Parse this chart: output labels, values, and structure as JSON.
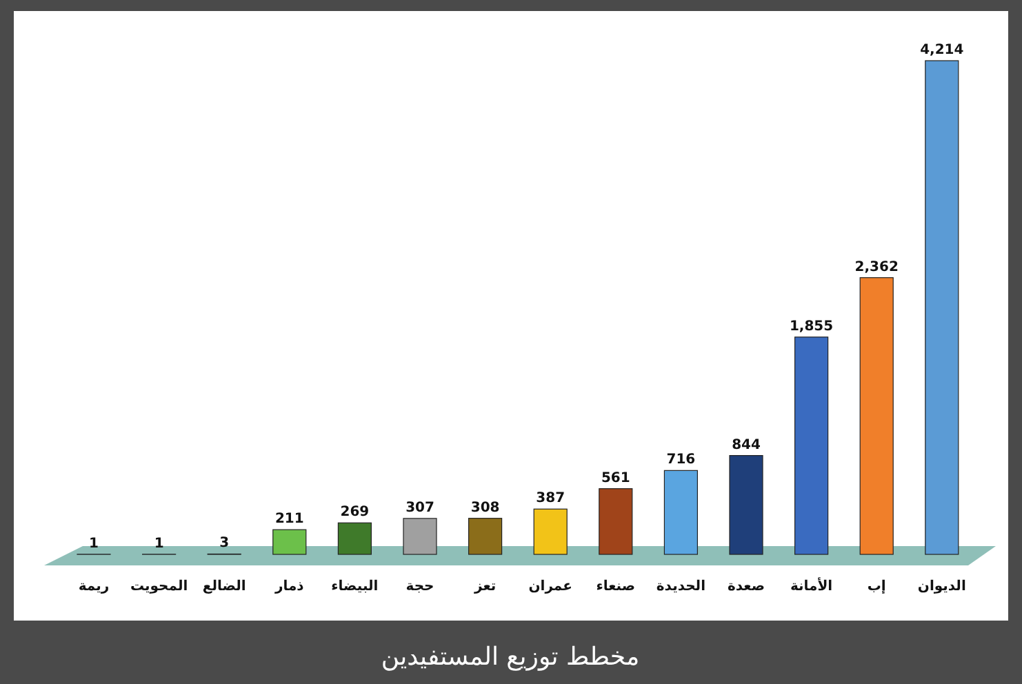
{
  "chart_data": {
    "type": "bar",
    "title": "مخطط توزيع المستفيدين",
    "categories": [
      "ريمة",
      "المحويت",
      "الضالع",
      "ذمار",
      "البيضاء",
      "حجة",
      "تعز",
      "عمران",
      "صنعاء",
      "الحديدة",
      "صعدة",
      "الأمانة",
      "إب",
      "الديوان"
    ],
    "values": [
      1,
      1,
      3,
      211,
      269,
      307,
      308,
      387,
      561,
      716,
      844,
      1855,
      2362,
      4214
    ],
    "colors": [
      "#1f3a5f",
      "#333333",
      "#8b4513",
      "#6cc04a",
      "#3f7a2a",
      "#a0a0a0",
      "#8b6d1a",
      "#f2c318",
      "#a0441a",
      "#5aa5e0",
      "#1f3f7a",
      "#3a6bc0",
      "#f07f2a",
      "#5b9bd5"
    ],
    "value_labels": [
      "1",
      "1",
      "3",
      "211",
      "269",
      "307",
      "308",
      "387",
      "561",
      "716",
      "844",
      "1,855",
      "2,362",
      "4,214"
    ]
  }
}
